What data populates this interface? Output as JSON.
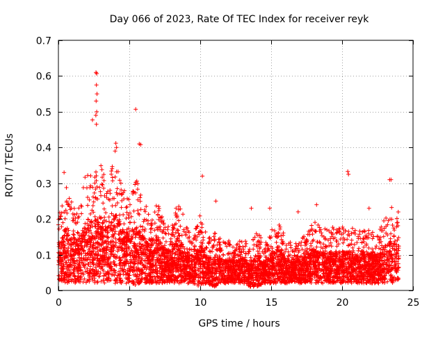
{
  "chart_data": {
    "type": "scatter",
    "title": "Day 066 of 2023, Rate Of TEC Index for receiver reyk",
    "xlabel": "GPS time / hours",
    "ylabel": "ROTI / TECUs",
    "xlim": [
      0,
      25
    ],
    "ylim": [
      0,
      0.7
    ],
    "xticks": [
      0,
      5,
      10,
      15,
      20,
      25
    ],
    "xtick_labels": [
      "0",
      "5",
      "10",
      "15",
      "20",
      "25"
    ],
    "yticks": [
      0,
      0.1,
      0.2,
      0.3,
      0.4,
      0.5,
      0.6,
      0.7
    ],
    "ytick_labels": [
      "0",
      "0.1",
      "0.2",
      "0.3",
      "0.4",
      "0.5",
      "0.6",
      "0.7"
    ],
    "grid": true,
    "marker": "+",
    "series": [
      {
        "name": "ROTI",
        "color": "#ff0000",
        "envelope": {
          "description": "approximate upper/lower extent of the dense point cloud vs time",
          "x": [
            0.0,
            0.5,
            1.0,
            1.5,
            2.0,
            2.5,
            3.0,
            3.5,
            4.0,
            4.5,
            5.0,
            5.5,
            6.0,
            6.5,
            7.0,
            7.5,
            8.0,
            8.5,
            9.0,
            9.5,
            10.0,
            10.5,
            11.0,
            11.5,
            12.0,
            12.5,
            13.0,
            13.5,
            14.0,
            14.5,
            15.0,
            15.5,
            16.0,
            16.5,
            17.0,
            17.5,
            18.0,
            18.5,
            19.0,
            19.5,
            20.0,
            20.5,
            21.0,
            21.5,
            22.0,
            22.5,
            23.0,
            23.5,
            24.0
          ],
          "upper": [
            0.2,
            0.3,
            0.24,
            0.26,
            0.34,
            0.33,
            0.36,
            0.3,
            0.38,
            0.3,
            0.26,
            0.31,
            0.26,
            0.2,
            0.26,
            0.18,
            0.2,
            0.26,
            0.18,
            0.16,
            0.22,
            0.15,
            0.17,
            0.14,
            0.14,
            0.13,
            0.15,
            0.12,
            0.17,
            0.13,
            0.17,
            0.19,
            0.15,
            0.13,
            0.14,
            0.16,
            0.2,
            0.18,
            0.17,
            0.18,
            0.18,
            0.18,
            0.17,
            0.17,
            0.17,
            0.16,
            0.21,
            0.24,
            0.22
          ],
          "lower": [
            0.03,
            0.02,
            0.02,
            0.02,
            0.02,
            0.02,
            0.02,
            0.02,
            0.02,
            0.02,
            0.02,
            0.01,
            0.02,
            0.02,
            0.02,
            0.02,
            0.02,
            0.02,
            0.02,
            0.02,
            0.01,
            0.02,
            0.01,
            0.02,
            0.02,
            0.02,
            0.02,
            0.01,
            0.01,
            0.02,
            0.02,
            0.02,
            0.02,
            0.02,
            0.02,
            0.02,
            0.02,
            0.02,
            0.02,
            0.02,
            0.02,
            0.02,
            0.02,
            0.02,
            0.02,
            0.02,
            0.02,
            0.02,
            0.02
          ]
        },
        "notable_points": [
          {
            "x": 2.65,
            "y": 0.61
          },
          {
            "x": 2.7,
            "y": 0.607
          },
          {
            "x": 2.68,
            "y": 0.575
          },
          {
            "x": 2.72,
            "y": 0.55
          },
          {
            "x": 2.66,
            "y": 0.53
          },
          {
            "x": 2.7,
            "y": 0.5
          },
          {
            "x": 2.64,
            "y": 0.49
          },
          {
            "x": 2.68,
            "y": 0.465
          },
          {
            "x": 2.4,
            "y": 0.477
          },
          {
            "x": 5.45,
            "y": 0.507
          },
          {
            "x": 5.7,
            "y": 0.41
          },
          {
            "x": 5.8,
            "y": 0.408
          },
          {
            "x": 4.05,
            "y": 0.412
          },
          {
            "x": 4.1,
            "y": 0.4
          },
          {
            "x": 4.0,
            "y": 0.39
          },
          {
            "x": 10.15,
            "y": 0.32
          },
          {
            "x": 20.4,
            "y": 0.333
          },
          {
            "x": 20.45,
            "y": 0.325
          },
          {
            "x": 23.35,
            "y": 0.31
          },
          {
            "x": 23.45,
            "y": 0.31
          },
          {
            "x": 11.1,
            "y": 0.25
          },
          {
            "x": 0.4,
            "y": 0.33
          },
          {
            "x": 16.9,
            "y": 0.22
          },
          {
            "x": 18.2,
            "y": 0.24
          },
          {
            "x": 21.9,
            "y": 0.23
          },
          {
            "x": 13.6,
            "y": 0.23
          },
          {
            "x": 14.9,
            "y": 0.23
          }
        ]
      }
    ]
  }
}
